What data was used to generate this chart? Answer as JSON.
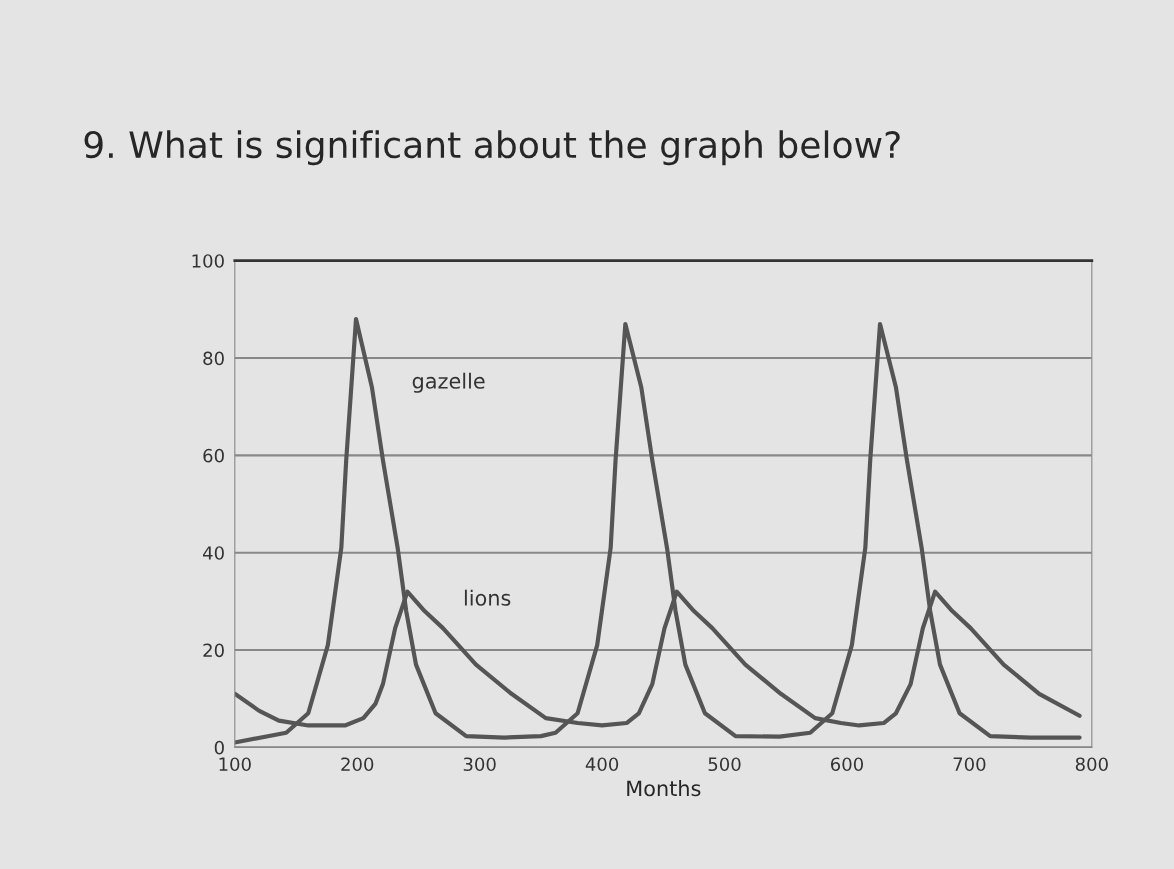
{
  "chart_data": {
    "type": "line",
    "title": "9. What is significant about the graph below?",
    "xlabel": "Months",
    "xlim": [
      100,
      800
    ],
    "xticks": [
      100,
      200,
      300,
      400,
      500,
      600,
      700,
      800
    ],
    "ylim": [
      0,
      100
    ],
    "yticks": [
      0,
      20,
      40,
      60,
      80,
      100
    ],
    "grid": "y",
    "legend": false,
    "marker": "none",
    "line_style": "solid",
    "series": [
      {
        "name": "gazelle",
        "color": "#555555",
        "x": [
          100,
          142,
          160,
          176,
          187,
          191,
          199,
          212,
          221,
          233,
          240,
          248,
          264,
          289,
          320,
          350,
          362,
          380,
          396,
          407,
          411,
          419,
          432,
          441,
          453,
          460,
          468,
          484,
          509,
          545,
          570,
          588,
          604,
          615,
          619,
          627,
          640,
          649,
          661,
          668,
          676,
          692,
          717,
          750,
          790
        ],
        "values": [
          1,
          3,
          7,
          21,
          41,
          59,
          88,
          74,
          59,
          41,
          28,
          17,
          7,
          2.3,
          2,
          2.3,
          3,
          7,
          21,
          41,
          59,
          87,
          74,
          59,
          41,
          28,
          17,
          7,
          2.3,
          2.2,
          3,
          7,
          21,
          41,
          59,
          87,
          74,
          59,
          41,
          28,
          17,
          7,
          2.3,
          2,
          2
        ]
      },
      {
        "name": "lions",
        "color": "#555555",
        "x": [
          100,
          120,
          136,
          160,
          190,
          205,
          215,
          221,
          231,
          241,
          255,
          270,
          297,
          326,
          354,
          380,
          400,
          420,
          430,
          441,
          451,
          461,
          475,
          490,
          517,
          546,
          574,
          595,
          610,
          630,
          640,
          652,
          662,
          672,
          686,
          701,
          728,
          757,
          790
        ],
        "values": [
          11,
          7.5,
          5.5,
          4.5,
          4.5,
          6,
          9,
          13,
          24.5,
          32,
          28,
          24.5,
          17,
          11,
          6,
          5,
          4.5,
          5,
          7,
          13,
          24.5,
          32,
          28,
          24.5,
          17,
          11,
          6,
          5,
          4.5,
          5,
          7,
          13,
          24.5,
          32,
          28,
          24.5,
          17,
          11,
          6.5
        ]
      }
    ]
  }
}
